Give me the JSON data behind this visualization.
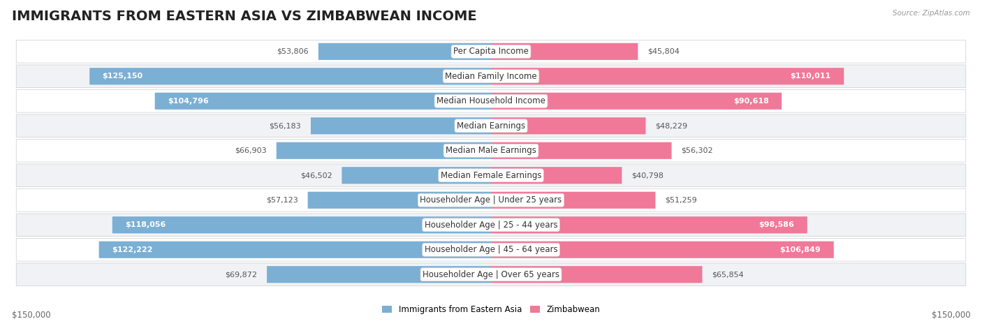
{
  "title": "IMMIGRANTS FROM EASTERN ASIA VS ZIMBABWEAN INCOME",
  "source": "Source: ZipAtlas.com",
  "categories": [
    "Per Capita Income",
    "Median Family Income",
    "Median Household Income",
    "Median Earnings",
    "Median Male Earnings",
    "Median Female Earnings",
    "Householder Age | Under 25 years",
    "Householder Age | 25 - 44 years",
    "Householder Age | 45 - 64 years",
    "Householder Age | Over 65 years"
  ],
  "eastern_asia": [
    53806,
    125150,
    104796,
    56183,
    66903,
    46502,
    57123,
    118056,
    122222,
    69872
  ],
  "zimbabwean": [
    45804,
    110011,
    90618,
    48229,
    56302,
    40798,
    51259,
    98586,
    106849,
    65854
  ],
  "eastern_asia_labels": [
    "$53,806",
    "$125,150",
    "$104,796",
    "$56,183",
    "$66,903",
    "$46,502",
    "$57,123",
    "$118,056",
    "$122,222",
    "$69,872"
  ],
  "zimbabwean_labels": [
    "$45,804",
    "$110,011",
    "$90,618",
    "$48,229",
    "$56,302",
    "$40,798",
    "$51,259",
    "$98,586",
    "$106,849",
    "$65,854"
  ],
  "color_eastern_asia": "#7bafd4",
  "color_zimbabwean": "#f07898",
  "max_val": 150000,
  "background_color": "#ffffff",
  "row_bg_odd": "#f0f2f5",
  "row_bg_even": "#ffffff",
  "axis_label_left": "$150,000",
  "axis_label_right": "$150,000",
  "legend_eastern": "Immigrants from Eastern Asia",
  "legend_zimbabwean": "Zimbabwean",
  "title_fontsize": 14,
  "category_fontsize": 8.5,
  "value_fontsize": 8.0,
  "inside_label_threshold": 80000
}
